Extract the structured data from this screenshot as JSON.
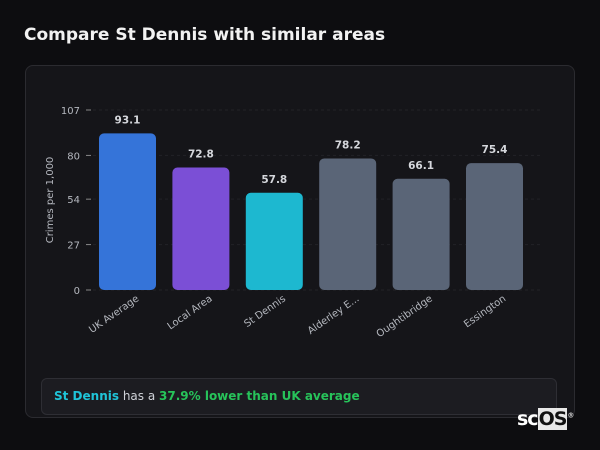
{
  "title": "Compare St Dennis with similar areas",
  "chart_data": {
    "type": "bar",
    "ylabel": "Crimes per 1,000",
    "ylim": [
      0,
      107
    ],
    "yticks": [
      0,
      27,
      54,
      80,
      107
    ],
    "categories": [
      "UK Average",
      "Local Area",
      "St Dennis",
      "Alderley E...",
      "Oughtibridge",
      "Essington"
    ],
    "values": [
      93.1,
      72.8,
      57.8,
      78.2,
      66.1,
      75.4
    ],
    "colors": [
      "#3574d9",
      "#7b4fd6",
      "#1db8d0",
      "#5a6577",
      "#5a6577",
      "#5a6577"
    ],
    "grid": true
  },
  "summary": {
    "area": "St Dennis",
    "middle": " has a ",
    "highlight": "37.9% lower than UK average"
  },
  "logo": {
    "prefix": "sc",
    "boxed": "OS",
    "mark": "®"
  }
}
